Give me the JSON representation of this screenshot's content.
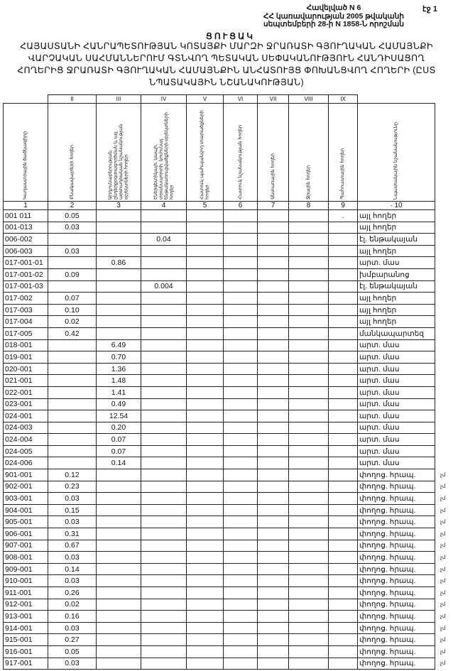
{
  "header": {
    "annex": [
      "Հավելված N 6",
      "ՀՀ կառավարության 2005 թվականի",
      "սեպտեմբերի 28-ի N 1858-Ն որոշման"
    ],
    "page": "էջ 1",
    "title": "ՑՈՒՑԱԿ",
    "subtitle": "ՀԱՅԱՍՏԱՆԻ ՀԱՆՐԱՊԵՏՈՒԹՅԱՆ ԿՈՏԱՅՔԻ ՄԱՐԶԻ ՋՐԱՌԱՏԻ ԳՅՈՒՂԱԿԱՆ ՀԱՄԱՅՆՔԻ ՎԱՐՉԱԿԱՆ ՍԱՀՄԱՆՆԵՐՈՒՄ ԳՏՆՎՈՂ ՊԵՏԱԿԱՆ ՍԵՓԱԿԱՆՈՒԹՅՈՒՆ ՀԱՆԴԻՍԱՑՈՂ ՀՈՂԵՐԻՑ ՋՐԱՌԱՏԻ ԳՅՈՒՂԱԿԱՆ ՀԱՄԱՅՆՔԻՆ ԱՆՀԱՏՈՒՅՑ ՓՈԽԱՆՑՎՈՂ ՀՈՂԵՐԻ (ԸՍՏ ՆՊԱՏԱԿԱՅԻՆ ՆՇԱՆԱԿՈՒԹՅԱՆ)"
  },
  "table": {
    "roman": [
      "",
      "II",
      "III",
      "IV",
      "V",
      "VI",
      "VII",
      "VIII",
      "IX",
      ""
    ],
    "headers": [
      "Կադաստրային ծածկագիրը",
      "Բնակավայրերի հողեր",
      "Արդյունաբերության, ընդերքօգտագործման և այլ արտադրական նշանակության օբյեկտների հողեր",
      "Էներգետիկայի, կապի, տրանսպորտի, կոմունալ ենթակառուցվածքների օբյեկտների հողեր",
      "Հատուկ պահպանվող տարածքների հողեր",
      "Հատուկ նշանակության հողեր",
      "Անտառային հողեր",
      "Ջրային հողեր",
      "Պահուստային հողեր",
      "Նպատակային նշանակությունը"
    ],
    "numbers": [
      "1",
      "2",
      "3",
      "4",
      "5",
      "6",
      "7",
      "8",
      "9",
      "· 10"
    ],
    "rows": [
      [
        "001 011",
        "0.05",
        "",
        "",
        "",
        "",
        "",
        "",
        ".",
        "այլ հողեր",
        ""
      ],
      [
        "001-013",
        "0.03",
        "",
        "",
        "",
        "",
        "",
        "",
        "",
        "այլ հողեր",
        ""
      ],
      [
        "006-002",
        "",
        "",
        "0.04",
        "",
        "",
        "",
        "",
        "",
        "էլ. ենթակայան",
        ""
      ],
      [
        "006-003",
        "0.03",
        "",
        "",
        "",
        "",
        "",
        "",
        "",
        "այլ հողեր",
        ""
      ],
      [
        "017-001-01",
        "",
        "0.86",
        "",
        "",
        "",
        "",
        "",
        "",
        "արտ. մաս",
        ""
      ],
      [
        "017-001-02",
        "0.09",
        "",
        "",
        "",
        "",
        "",
        "",
        "",
        "խմբարանոց",
        ""
      ],
      [
        "017-001-03",
        "",
        "",
        "0.004",
        "",
        "",
        "",
        "",
        "",
        "էլ. ենթակայան",
        ""
      ],
      [
        "017-002",
        "0.07",
        "",
        "",
        "",
        "",
        "",
        "",
        "",
        "այլ հողեր",
        ""
      ],
      [
        "017-003",
        "0.10",
        "",
        "",
        "",
        "",
        "",
        "",
        "",
        "այլ հողեր",
        ""
      ],
      [
        "017-004",
        "0.02",
        "",
        "",
        "",
        "",
        "",
        "",
        "",
        "այլ հողեր",
        ""
      ],
      [
        "017-005",
        "0.42",
        "",
        "",
        "",
        "",
        "",
        "",
        "",
        "մանկապարտեզ",
        ""
      ],
      [
        "018-001",
        "",
        "6.49",
        "",
        "",
        "",
        "",
        "",
        "",
        "արտ. մաս",
        ""
      ],
      [
        "019-001",
        "",
        "0.70",
        "",
        "",
        "",
        "",
        "",
        "",
        "արտ. մաս",
        ""
      ],
      [
        "020-001",
        "",
        "1.36",
        "",
        "",
        "",
        "",
        "",
        "",
        "արտ. մաս",
        ""
      ],
      [
        "021-001",
        "",
        "1.48",
        "",
        "",
        "",
        "",
        "",
        "",
        "արտ. մաս",
        ""
      ],
      [
        "022-001",
        "",
        "1.41",
        "",
        "",
        "",
        "",
        "",
        "",
        "արտ. մաս",
        ""
      ],
      [
        "023-001",
        "",
        "0.49",
        "",
        "",
        "",
        "",
        "",
        "",
        "արտ. մաս",
        ""
      ],
      [
        "024-001",
        "",
        "12.54",
        "",
        "",
        "",
        "",
        "",
        "",
        "արտ. մաս",
        ""
      ],
      [
        "024-003",
        "",
        "0.20",
        "",
        "",
        "",
        "",
        "",
        "",
        "արտ. մաս",
        ""
      ],
      [
        "024-004",
        "",
        "0.07",
        "",
        "",
        "",
        "",
        "",
        "",
        "արտ. մաս",
        ""
      ],
      [
        "024-005",
        "",
        "0.07",
        "",
        "",
        "",
        "",
        "",
        "",
        "արտ. մաս",
        ""
      ],
      [
        "024-006",
        "",
        "0.14",
        "",
        "",
        "",
        "",
        "",
        "",
        "արտ. մաս",
        ""
      ],
      [
        "901-001",
        "0.12",
        "",
        "",
        "",
        "",
        "",
        "",
        "",
        "փողոց. հրապ.",
        "չմ"
      ],
      [
        "902-001",
        "0.23",
        "",
        "",
        "",
        "",
        "",
        "",
        "",
        "փողոց. հրապ.",
        "չմ"
      ],
      [
        "903-001",
        "0.03",
        "",
        "",
        "",
        "",
        "",
        "",
        "",
        "փողոց. հրապ.",
        "չմ"
      ],
      [
        "904-001",
        "0.15",
        "",
        "",
        "",
        "",
        "",
        "",
        "",
        "փողոց. հրապ.",
        "չմ"
      ],
      [
        "905-001",
        "0.03",
        "",
        "",
        "",
        "",
        "",
        "",
        "",
        "փողոց. հրապ.",
        "չմ"
      ],
      [
        "906-001",
        "0.31",
        "",
        "",
        "",
        "",
        "",
        "",
        "",
        "փողոց. հրապ.",
        "չմ"
      ],
      [
        "907-001",
        "0.67",
        "",
        "",
        "",
        "",
        "",
        "",
        "",
        "փողոց. հրապ.",
        "չմ"
      ],
      [
        "908-001",
        "0.03",
        "",
        "",
        "",
        "",
        "",
        "",
        "",
        "փողոց. հրապ.",
        "չմ"
      ],
      [
        "909-001",
        "0.14",
        "",
        "",
        "",
        "",
        "",
        "",
        "",
        "փողոց. հրապ.",
        "չմ"
      ],
      [
        "910-001",
        "0.03",
        "",
        "",
        "",
        "",
        "",
        "",
        "",
        "փողոց. հրապ.",
        "չմ"
      ],
      [
        "911-001",
        "0.26",
        "",
        "",
        "",
        "",
        "",
        "",
        "",
        "փողոց. հրապ.",
        "չմ"
      ],
      [
        "912-001",
        "0.02",
        "",
        "",
        "",
        "",
        "",
        "",
        "",
        "փողոց. հրապ.",
        "չմ"
      ],
      [
        "913-001",
        "0.16",
        "",
        "",
        "",
        "",
        "",
        "",
        "",
        "փողոց. հրապ.",
        "չմ"
      ],
      [
        "914-001",
        "0.03",
        "",
        "",
        "",
        "",
        "",
        "",
        "",
        "փողոց. հրապ.",
        "չմ"
      ],
      [
        "915-001",
        "0.27",
        "",
        "",
        "",
        "",
        "",
        "",
        "",
        "փողոց. հրապ.",
        "չմ"
      ],
      [
        "916-001",
        "0.05",
        "",
        "",
        "",
        "",
        "",
        "",
        "",
        "փողոց. հրապ.",
        "չմ"
      ],
      [
        "917-001",
        "0.03",
        "",
        "",
        "",
        "",
        "",
        "",
        "",
        "փողոց. հրապ.",
        "չմ"
      ]
    ]
  }
}
